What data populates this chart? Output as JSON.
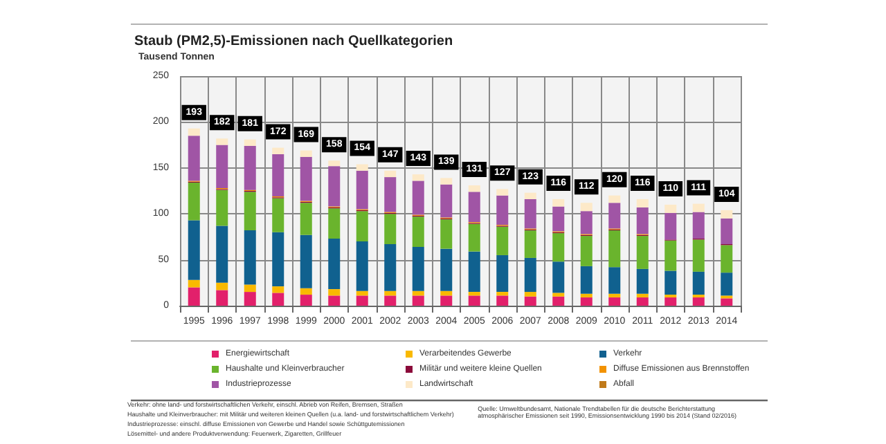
{
  "chart_data": {
    "type": "bar",
    "stacked": true,
    "title": "Staub (PM2,5)-Emissionen nach Quellkategorien",
    "ylabel": "Tausend Tonnen",
    "categories": [
      "1995",
      "1996",
      "1997",
      "1998",
      "1999",
      "2000",
      "2001",
      "2002",
      "2003",
      "2004",
      "2005",
      "2006",
      "2007",
      "2008",
      "2009",
      "2010",
      "2011",
      "2012",
      "2013",
      "2014"
    ],
    "series": [
      {
        "name": "Energiewirtschaft",
        "color": "#e2206b",
        "values": [
          20,
          17,
          15,
          14,
          12,
          11,
          11,
          11,
          11,
          11,
          11,
          11,
          10,
          10,
          9,
          9,
          9,
          9,
          9,
          8
        ]
      },
      {
        "name": "Verarbeitendes Gewerbe",
        "color": "#f9b900",
        "values": [
          8,
          8,
          8,
          7,
          7,
          7,
          5,
          5,
          5,
          5,
          4,
          4,
          5,
          4,
          4,
          4,
          4,
          3,
          3,
          3
        ]
      },
      {
        "name": "Verkehr",
        "color": "#10618f",
        "values": [
          65,
          62,
          59,
          59,
          58,
          55,
          54,
          51,
          48,
          46,
          44,
          40,
          37,
          34,
          30,
          29,
          27,
          26,
          25,
          25
        ]
      },
      {
        "name": "Haushalte und Kleinverbraucher",
        "color": "#6ab42d",
        "values": [
          41,
          39,
          42,
          37,
          35,
          33,
          33,
          33,
          33,
          32,
          30,
          31,
          30,
          31,
          33,
          40,
          36,
          33,
          35,
          30
        ]
      },
      {
        "name": "Militär und weitere kleine Quellen",
        "color": "#8b0a3a",
        "values": [
          1,
          1,
          1,
          1,
          1,
          1,
          1,
          1,
          1,
          1,
          1,
          1,
          1,
          1,
          1,
          1,
          1,
          1,
          1,
          1
        ]
      },
      {
        "name": "Diffuse Emissionen aus Brennstoffen",
        "color": "#f29200",
        "values": [
          1,
          1,
          1,
          1,
          1,
          1,
          1,
          1,
          1,
          1,
          1,
          1,
          1,
          1,
          1,
          1,
          1,
          0,
          0,
          0
        ]
      },
      {
        "name": "Industrieprozesse",
        "color": "#a055a5",
        "values": [
          49,
          47,
          48,
          46,
          48,
          44,
          42,
          38,
          37,
          36,
          33,
          32,
          32,
          27,
          25,
          28,
          29,
          29,
          29,
          28
        ]
      },
      {
        "name": "Landwirtschaft",
        "color": "#fde9c8",
        "values": [
          8,
          7,
          7,
          7,
          7,
          6,
          7,
          7,
          7,
          7,
          7,
          7,
          7,
          8,
          9,
          8,
          9,
          9,
          9,
          9
        ]
      },
      {
        "name": "Abfall",
        "color": "#c07a1a",
        "values": [
          0,
          0,
          0,
          0,
          0,
          0,
          0,
          0,
          0,
          0,
          0,
          0,
          0,
          0,
          0,
          0,
          0,
          0,
          0,
          0
        ]
      }
    ],
    "totals": [
      "193",
      "182",
      "181",
      "172",
      "169",
      "158",
      "154",
      "147",
      "143",
      "139",
      "131",
      "127",
      "123",
      "116",
      "112",
      "120",
      "116",
      "110",
      "111",
      "104"
    ],
    "ylim": [
      0,
      250
    ],
    "yticks": [
      0,
      50,
      100,
      150,
      200,
      250
    ],
    "grid": true,
    "legend": "bottom",
    "annotations": [
      "Verkehr: ohne land- und forstwirtschaftlichen Verkehr, einschl. Abrieb von Reifen, Bremsen, Straßen",
      "Haushalte und Kleinverbraucher: mit Militär und weiteren kleinen Quellen (u.a. land- und forstwirtschaftlichem Verkehr)",
      "Industrieprozesse: einschl. diffuse Emissionen von Gewerbe und Handel sowie Schüttgutemissionen",
      "Lösemittel- und andere Produktverwendung: Feuerwerk, Zigaretten, Grillfeuer",
      "Quelle: Umweltbundesamt, Nationale Trendtabellen für die deutsche Berichterstattung atmosphärischer Emissionen seit 1990, Emissionsentwicklung 1990 bis 2014 (Stand 02/2016)"
    ]
  }
}
